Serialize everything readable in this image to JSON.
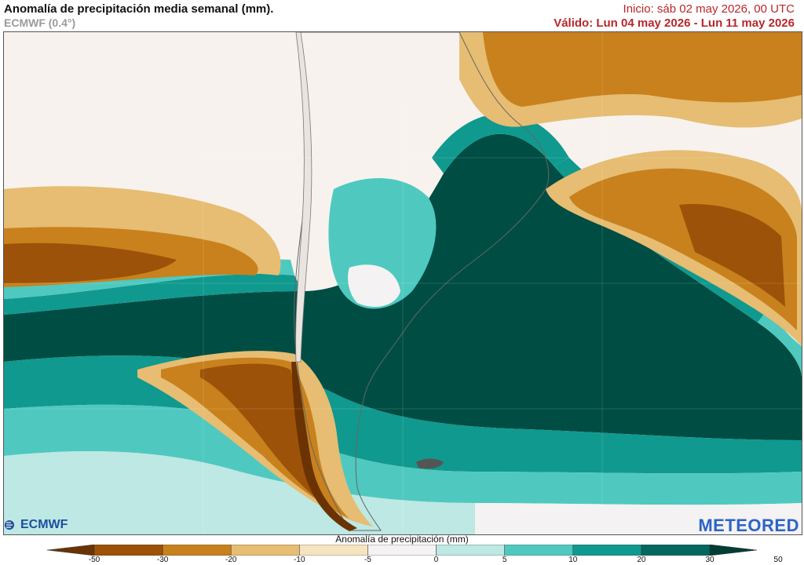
{
  "header": {
    "title": "Anomalía de precipitación media semanal (mm).",
    "model": "ECMWF (0.4°)",
    "init": "Inicio:  sáb 02 may 2026, 00 UTC",
    "valid": "Válido: Lun 04 may 2026 - Lun 11 may 2026"
  },
  "logos": {
    "left": "ECMWF",
    "right": "METEORED"
  },
  "colorbar": {
    "title": "Anomalía de precipitación (mm)",
    "ticks": [
      "-50",
      "-30",
      "-20",
      "-10",
      "-5",
      "0",
      "5",
      "10",
      "20",
      "30",
      "50"
    ],
    "colors": [
      "#6b3303",
      "#9c5208",
      "#c8811d",
      "#e6bd72",
      "#f6e4c0",
      "#f4f2f2",
      "#bde8e4",
      "#4fc9bf",
      "#10998f",
      "#04685f",
      "#003d33"
    ]
  },
  "map": {
    "region": "South America (southern cone)",
    "colors": {
      "background_light": "#f7f2ee",
      "dry_strong": "#9c5208",
      "dry_moderate": "#c8811d",
      "dry_light": "#e6bd72",
      "wet_light": "#4fc9bf",
      "wet_strong": "#004d43"
    }
  }
}
